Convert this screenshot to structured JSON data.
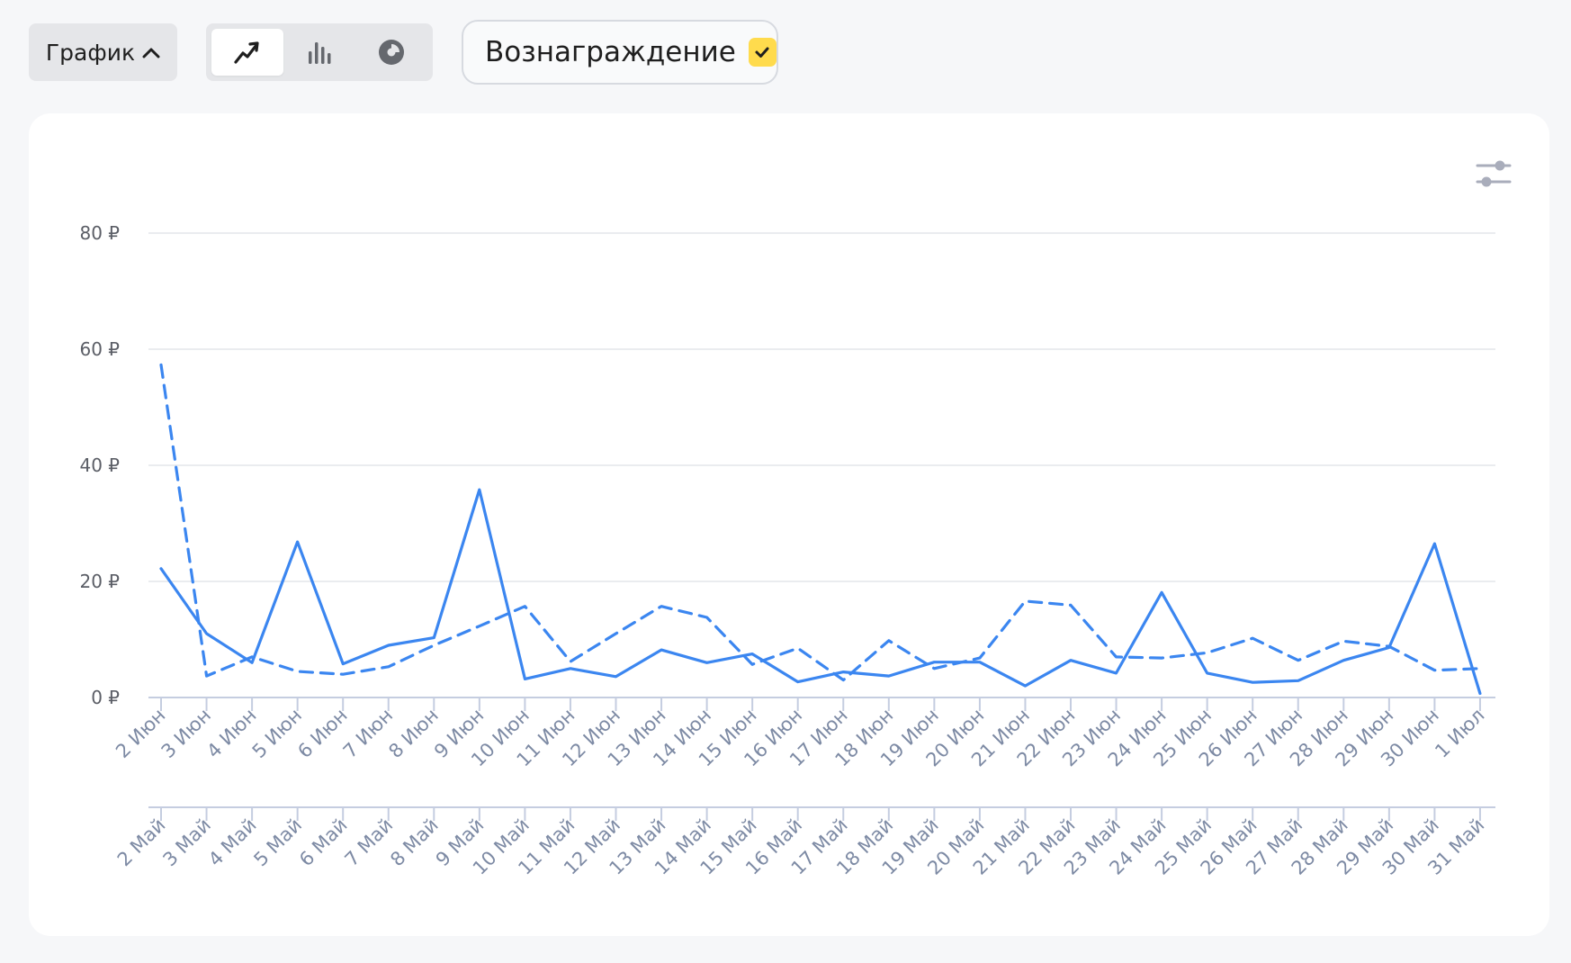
{
  "toolbar": {
    "graph_label": "График",
    "chart_types": [
      {
        "icon": "line-chart-icon",
        "active": true
      },
      {
        "icon": "bar-chart-icon",
        "active": false
      },
      {
        "icon": "pie-chart-icon",
        "active": false
      }
    ],
    "metric_label": "Вознаграждение",
    "metric_checked": true
  },
  "colors": {
    "accent": "#ffdb4d",
    "series": "#3b86f0",
    "grid": "#e3e5ea",
    "axis": "#c5cde0"
  },
  "chart_data": {
    "type": "line",
    "title": "",
    "ylabel": "",
    "ylim": [
      0,
      80
    ],
    "yticks": [
      0,
      20,
      40,
      60,
      80
    ],
    "ytick_labels": [
      "0 ₽",
      "20 ₽",
      "40 ₽",
      "60 ₽",
      "80 ₽"
    ],
    "grid": true,
    "x_current": [
      "2 Июн",
      "3 Июн",
      "4 Июн",
      "5 Июн",
      "6 Июн",
      "7 Июн",
      "8 Июн",
      "9 Июн",
      "10 Июн",
      "11 Июн",
      "12 Июн",
      "13 Июн",
      "14 Июн",
      "15 Июн",
      "16 Июн",
      "17 Июн",
      "18 Июн",
      "19 Июн",
      "20 Июн",
      "21 Июн",
      "22 Июн",
      "23 Июн",
      "24 Июн",
      "25 Июн",
      "26 Июн",
      "27 Июн",
      "28 Июн",
      "29 Июн",
      "30 Июн",
      "1 Июл"
    ],
    "x_previous": [
      "2 Май",
      "3 Май",
      "4 Май",
      "5 Май",
      "6 Май",
      "7 Май",
      "8 Май",
      "9 Май",
      "10 Май",
      "11 Май",
      "12 Май",
      "13 Май",
      "14 Май",
      "15 Май",
      "16 Май",
      "17 Май",
      "18 Май",
      "19 Май",
      "20 Май",
      "21 Май",
      "22 Май",
      "23 Май",
      "24 Май",
      "25 Май",
      "26 Май",
      "27 Май",
      "28 Май",
      "29 Май",
      "30 Май",
      "31 Май"
    ],
    "series": [
      {
        "style": "solid",
        "values": [
          22.2,
          11.0,
          6.0,
          26.8,
          5.8,
          9.0,
          10.3,
          35.8,
          3.2,
          5.0,
          3.6,
          8.2,
          6.0,
          7.5,
          2.7,
          4.4,
          3.7,
          6.1,
          6.1,
          2.0,
          6.4,
          4.2,
          18.1,
          4.2,
          2.6,
          2.9,
          6.4,
          8.6,
          26.5,
          0.7
        ]
      },
      {
        "style": "dashed",
        "values": [
          57.3,
          3.7,
          7.0,
          4.5,
          4.0,
          5.3,
          9.0,
          12.3,
          15.7,
          6.2,
          11.0,
          15.7,
          13.8,
          5.7,
          8.5,
          3.0,
          9.8,
          5.0,
          6.8,
          16.6,
          15.9,
          7.0,
          6.8,
          7.7,
          10.2,
          6.4,
          9.7,
          8.8,
          4.7,
          5.0
        ]
      }
    ]
  }
}
